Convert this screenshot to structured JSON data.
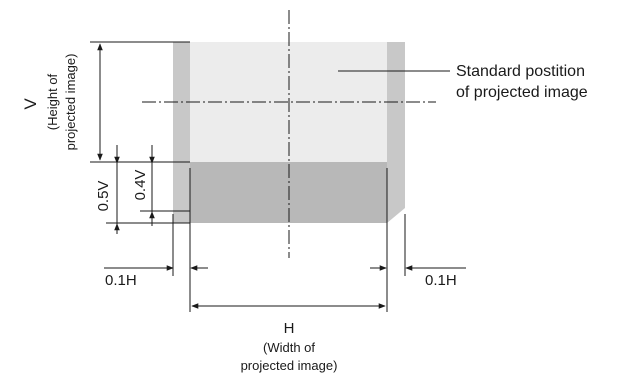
{
  "labels": {
    "v_letter": "V",
    "v_desc_1": "(Height of",
    "v_desc_2": "projected image)",
    "half_v": "0.5V",
    "point_four_v": "0.4V",
    "tenth_h_left": "0.1H",
    "tenth_h_right": "0.1H",
    "h_letter": "H",
    "h_desc_1": "(Width of",
    "h_desc_2": "projected image)",
    "standard_1": "Standard postition",
    "standard_2": "of projected image"
  },
  "colors": {
    "outer_shift_area": "#c8c8c8",
    "standard_image": "#ececec",
    "lower_shift_band": "#b8b8b8",
    "line": "#1a1a1a",
    "text": "#1a1a1a"
  }
}
